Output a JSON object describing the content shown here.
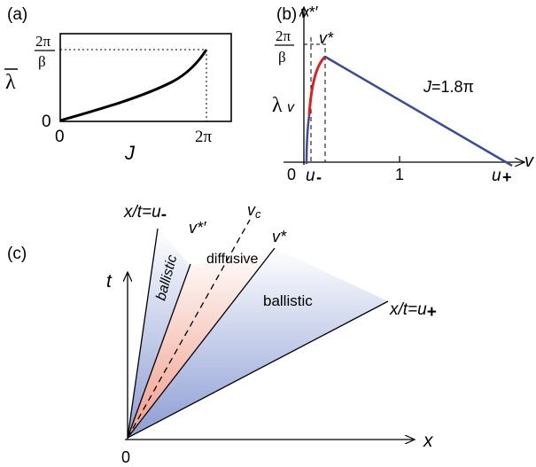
{
  "panel_a": {
    "tag": "(a)",
    "ylabel": "λ",
    "xlabel": "J",
    "x_ticks": [
      "0",
      "2π"
    ],
    "y_ticks": [
      "0"
    ],
    "y_top_num": "2π",
    "y_top_den": "β"
  },
  "panel_b": {
    "tag": "(b)",
    "ylabel": "λ",
    "ylabel_sub": "v",
    "xlabel": "v",
    "top_num": "2π",
    "top_den": "β",
    "vstar_prime": "v*′",
    "vstar": "v*",
    "param": "J=1.8π",
    "x_ticks": [
      "0",
      "1"
    ],
    "u_minus": "u",
    "u_minus_sub": "-",
    "u_plus": "u",
    "u_plus_sub": "+"
  },
  "panel_c": {
    "tag": "(c)",
    "t_label": "t",
    "x_label": "x",
    "origin": "0",
    "ray_u_minus": "x/t=u-",
    "ray_vstar_prime": "v*′",
    "ray_vc": "vc",
    "ray_vstar": "v*",
    "ray_u_plus": "x/t=u+",
    "region_ballistic_left": "ballistic",
    "region_diffusive": "diffusive",
    "region_ballistic_right": "ballistic"
  },
  "colors": {
    "curve": "#000000",
    "red_segment": "#e0201c",
    "blue_segment": "#3a4a9c",
    "blue_fill": "#8c9dd4",
    "red_fill": "#f2a08c"
  }
}
